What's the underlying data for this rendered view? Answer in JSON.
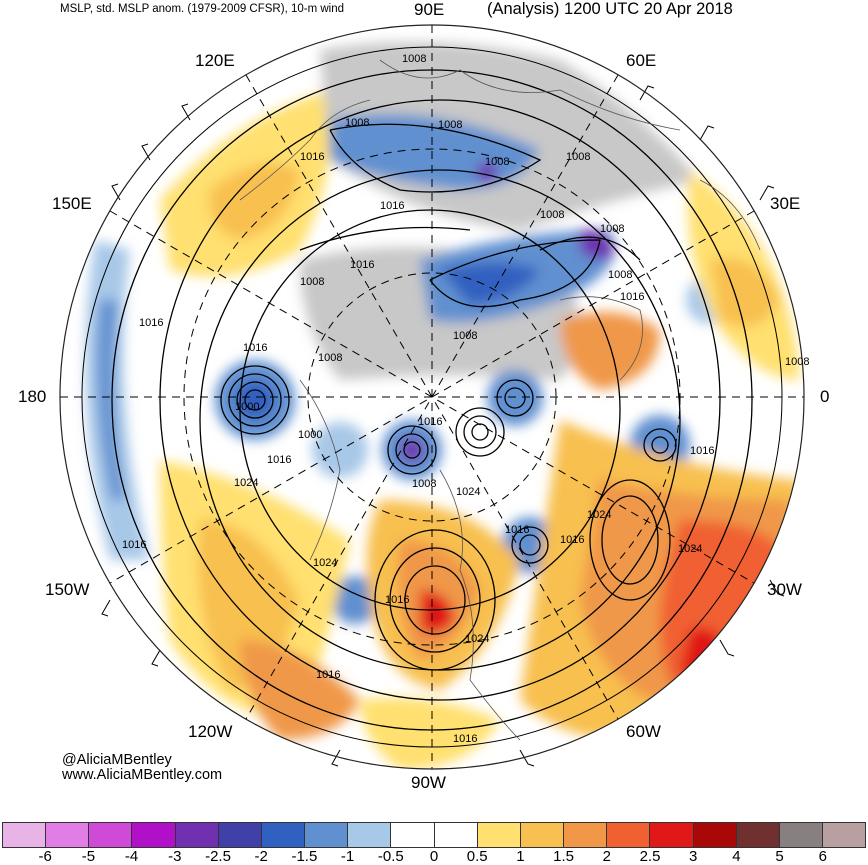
{
  "header": {
    "left_title": "MSLP, std. MSLP anom. (1979-2009 CFSR), 10-m wind",
    "right_title": "(Analysis) 1200 UTC 20 Apr 2018"
  },
  "longitude_labels": {
    "top": "90E",
    "top_right": "60E",
    "upper_right": "30E",
    "right": "0",
    "lower_right": "30W",
    "bottom_right": "60W",
    "bottom": "90W",
    "bottom_left": "120W",
    "lower_left": "150W",
    "left": "180",
    "upper_left": "150E",
    "top_left": "120E"
  },
  "isobar_labels": [
    "1008",
    "1008",
    "1008",
    "1016",
    "1008",
    "1008",
    "1016",
    "1016",
    "1008",
    "1008",
    "1008",
    "1016",
    "1008",
    "1016",
    "1008",
    "1016",
    "1008",
    "1008",
    "1000",
    "1016",
    "1000",
    "1016",
    "1024",
    "1016",
    "1008",
    "1024",
    "1024",
    "1016",
    "1016",
    "1024",
    "1024",
    "1016",
    "1016",
    "1024",
    "1016",
    "1016"
  ],
  "credit": {
    "twitter": "@AliciaMBentley",
    "website": "www.AliciaMBentley.com"
  },
  "colorbar": {
    "colors": [
      "#e8b4e8",
      "#e07ee6",
      "#d04ad8",
      "#b010c8",
      "#7030b0",
      "#4040a8",
      "#3060c0",
      "#6090d0",
      "#a8c8e8",
      "#ffffff",
      "#ffffff",
      "#ffe070",
      "#f8c050",
      "#f09848",
      "#f06030",
      "#e01818",
      "#a80808",
      "#703030",
      "#888080",
      "#b8a0a0"
    ],
    "tick_labels": [
      "-6",
      "-5",
      "-4",
      "-3",
      "-2.5",
      "-2",
      "-1.5",
      "-1",
      "-0.5",
      "0",
      "0.5",
      "1",
      "1.5",
      "2",
      "2.5",
      "3",
      "4",
      "5",
      "6"
    ]
  }
}
